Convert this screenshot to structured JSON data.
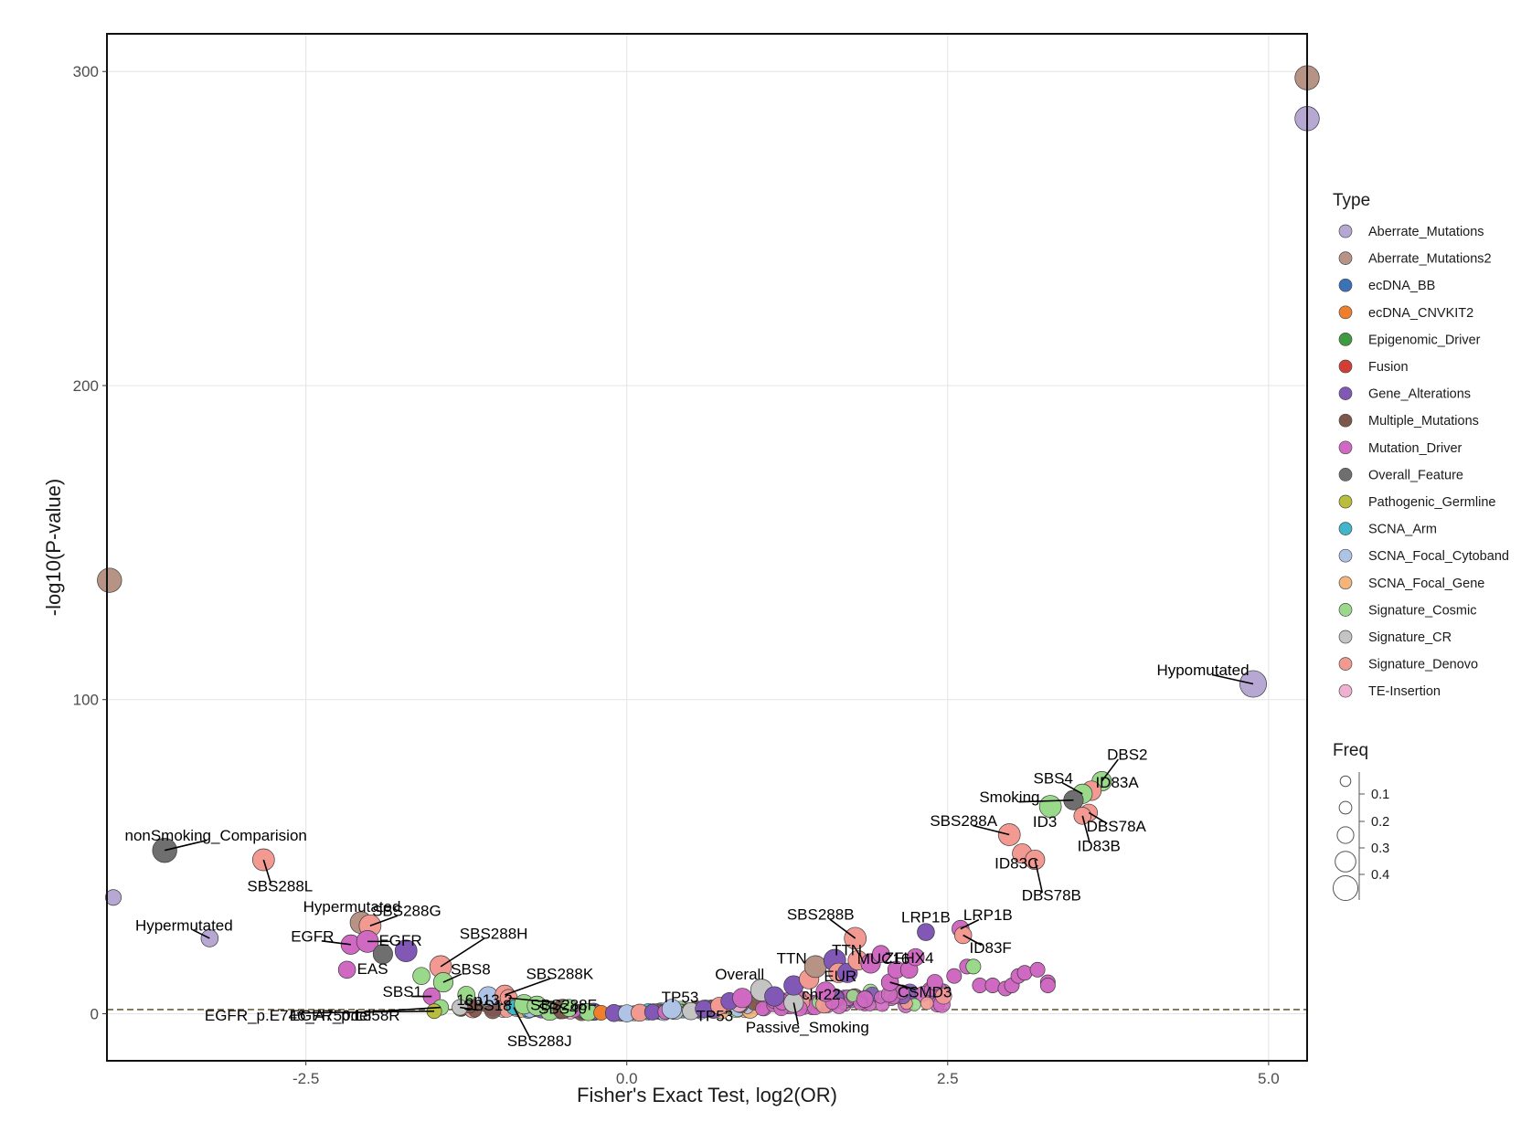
{
  "chart_data": {
    "type": "scatter",
    "xlabel": "Fisher's Exact Test, log2(OR)",
    "ylabel": "-log10(P-value)",
    "xlim": [
      -4.05,
      5.3
    ],
    "ylim": [
      -15,
      312
    ],
    "xticks": [
      -2.5,
      0.0,
      2.5,
      5.0
    ],
    "xtick_labels": [
      "-2.5",
      "0.0",
      "2.5",
      "5.0"
    ],
    "yticks": [
      0,
      100,
      200,
      300
    ],
    "ytick_labels": [
      "0",
      "100",
      "200",
      "300"
    ],
    "grid": true,
    "threshold_line": {
      "y": 1.3,
      "style": "dashed",
      "color": "#6b5d3f"
    },
    "legend_position": "right",
    "type_legend": {
      "title": "Type",
      "entries": [
        {
          "name": "Aberrate_Mutations",
          "color": "#b7a7d3"
        },
        {
          "name": "Aberrate_Mutations2",
          "color": "#b69384"
        },
        {
          "name": "ecDNA_BB",
          "color": "#3a73b5"
        },
        {
          "name": "ecDNA_CNVKIT2",
          "color": "#ef7f2d"
        },
        {
          "name": "Epigenomic_Driver",
          "color": "#3f9b3f"
        },
        {
          "name": "Fusion",
          "color": "#d33d34"
        },
        {
          "name": "Gene_Alterations",
          "color": "#8158b5"
        },
        {
          "name": "Multiple_Mutations",
          "color": "#7d574b"
        },
        {
          "name": "Mutation_Driver",
          "color": "#cf69c1"
        },
        {
          "name": "Overall_Feature",
          "color": "#6f6f6f"
        },
        {
          "name": "Pathogenic_Germline",
          "color": "#b8bd3b"
        },
        {
          "name": "SCNA_Arm",
          "color": "#3fb6c9"
        },
        {
          "name": "SCNA_Focal_Cytoband",
          "color": "#aec3e6"
        },
        {
          "name": "SCNA_Focal_Gene",
          "color": "#f4b57a"
        },
        {
          "name": "Signature_Cosmic",
          "color": "#9ad98a"
        },
        {
          "name": "Signature_CR",
          "color": "#c4c4c4"
        },
        {
          "name": "Signature_Denovo",
          "color": "#f29a92"
        },
        {
          "name": "TE-Insertion",
          "color": "#f1b0d2"
        }
      ]
    },
    "freq_legend": {
      "title": "Freq",
      "entries": [
        {
          "label": "0.1",
          "value": 0.1
        },
        {
          "label": "0.2",
          "value": 0.2
        },
        {
          "label": "0.3",
          "value": 0.3
        },
        {
          "label": "0.4",
          "value": 0.4
        }
      ]
    },
    "points": [
      {
        "x": 5.3,
        "y": 298,
        "type": "Aberrate_Mutations2",
        "freq": 0.3
      },
      {
        "x": 5.3,
        "y": 285,
        "type": "Aberrate_Mutations",
        "freq": 0.3
      },
      {
        "x": -4.03,
        "y": 138,
        "type": "Aberrate_Mutations2",
        "freq": 0.3
      },
      {
        "x": 4.88,
        "y": 105,
        "type": "Aberrate_Mutations",
        "freq": 0.35,
        "label": "Hypomutated"
      },
      {
        "x": 3.7,
        "y": 74,
        "type": "Signature_Cosmic",
        "freq": 0.2,
        "label": "DBS2"
      },
      {
        "x": 3.62,
        "y": 71,
        "type": "Signature_Denovo",
        "freq": 0.2,
        "label": "ID83A"
      },
      {
        "x": 3.55,
        "y": 70,
        "type": "Signature_Cosmic",
        "freq": 0.2,
        "label": "SBS4"
      },
      {
        "x": 3.48,
        "y": 68,
        "type": "Overall_Feature",
        "freq": 0.2,
        "label": "Smoking"
      },
      {
        "x": 3.3,
        "y": 66,
        "type": "Signature_Cosmic",
        "freq": 0.25,
        "label": "ID3"
      },
      {
        "x": 3.6,
        "y": 64,
        "type": "Signature_Denovo",
        "freq": 0.15,
        "label": "DBS78A"
      },
      {
        "x": 3.55,
        "y": 63,
        "type": "Signature_Denovo",
        "freq": 0.15,
        "label": "ID83B"
      },
      {
        "x": 2.98,
        "y": 57,
        "type": "Signature_Denovo",
        "freq": 0.25,
        "label": "SBS288A"
      },
      {
        "x": 3.08,
        "y": 51,
        "type": "Signature_Denovo",
        "freq": 0.2,
        "label": "ID83C"
      },
      {
        "x": 3.18,
        "y": 49,
        "type": "Signature_Denovo",
        "freq": 0.2,
        "label": "DBS78B"
      },
      {
        "x": -3.6,
        "y": 52,
        "type": "Overall_Feature",
        "freq": 0.3,
        "label": "nonSmoking_Comparision"
      },
      {
        "x": -2.83,
        "y": 49,
        "type": "Signature_Denovo",
        "freq": 0.25,
        "label": "SBS288L"
      },
      {
        "x": -4.0,
        "y": 37,
        "type": "Aberrate_Mutations",
        "freq": 0.12
      },
      {
        "x": -3.25,
        "y": 24,
        "type": "Aberrate_Mutations",
        "freq": 0.15,
        "label": "Hypermutated"
      },
      {
        "x": -2.07,
        "y": 29,
        "type": "Aberrate_Mutations2",
        "freq": 0.25,
        "label": "Hypermutated"
      },
      {
        "x": -2.0,
        "y": 28,
        "type": "Signature_Denovo",
        "freq": 0.25,
        "label": "SBS288G"
      },
      {
        "x": -2.15,
        "y": 22,
        "type": "Mutation_Driver",
        "freq": 0.2,
        "label": "EGFR"
      },
      {
        "x": -2.02,
        "y": 23,
        "type": "Mutation_Driver",
        "freq": 0.25,
        "label": "EGFR"
      },
      {
        "x": -1.9,
        "y": 19,
        "type": "Overall_Feature",
        "freq": 0.2
      },
      {
        "x": -1.72,
        "y": 20,
        "type": "Gene_Alterations",
        "freq": 0.25
      },
      {
        "x": -2.18,
        "y": 14,
        "type": "Mutation_Driver",
        "freq": 0.15,
        "label": "EAS"
      },
      {
        "x": -1.45,
        "y": 15,
        "type": "Signature_Denovo",
        "freq": 0.25,
        "label": "SBS288H"
      },
      {
        "x": -1.43,
        "y": 10,
        "type": "Signature_Cosmic",
        "freq": 0.2,
        "label": "SBS8"
      },
      {
        "x": -1.6,
        "y": 12,
        "type": "Signature_Cosmic",
        "freq": 0.15
      },
      {
        "x": -1.25,
        "y": 6,
        "type": "Signature_Cosmic",
        "freq": 0.15
      },
      {
        "x": -1.08,
        "y": 5.5,
        "type": "SCNA_Focal_Cytoband",
        "freq": 0.2,
        "label": "16p13.2"
      },
      {
        "x": -0.95,
        "y": 6,
        "type": "Signature_Denovo",
        "freq": 0.2,
        "label": "SBS288K"
      },
      {
        "x": -0.92,
        "y": 5,
        "type": "Signature_Denovo",
        "freq": 0.15,
        "label": "SBS288F"
      },
      {
        "x": -1.52,
        "y": 5.5,
        "type": "Mutation_Driver",
        "freq": 0.15,
        "label": "SBS1"
      },
      {
        "x": -1.45,
        "y": 2,
        "type": "Signature_Cosmic",
        "freq": 0.12,
        "label": "EGFR_p.L858R"
      },
      {
        "x": -1.3,
        "y": 2,
        "type": "Signature_CR",
        "freq": 0.12,
        "label": "SBS18"
      },
      {
        "x": -0.88,
        "y": 2,
        "type": "SCNA_Arm",
        "freq": 0.1,
        "label": "SBS288J"
      },
      {
        "x": -0.6,
        "y": 1,
        "type": "Signature_Cosmic",
        "freq": 0.2,
        "label": "SBS40"
      },
      {
        "x": -1.5,
        "y": 0.8,
        "type": "Pathogenic_Germline",
        "freq": 0.1,
        "label": "EGFR_p.E746_A750del"
      },
      {
        "x": -0.8,
        "y": 3,
        "type": "Signature_Cosmic",
        "freq": 0.2
      },
      {
        "x": -0.7,
        "y": 2.5,
        "type": "Signature_Cosmic",
        "freq": 0.2
      },
      {
        "x": -0.5,
        "y": 1.5,
        "type": "Multiple_Mutations",
        "freq": 0.2
      },
      {
        "x": -0.45,
        "y": 1.8,
        "type": "Signature_Cosmic",
        "freq": 0.15
      },
      {
        "x": -0.3,
        "y": 0.5,
        "type": "Signature_Cosmic",
        "freq": 0.15
      },
      {
        "x": -0.2,
        "y": 0.3,
        "type": "ecDNA_CNVKIT2",
        "freq": 0.1
      },
      {
        "x": -0.1,
        "y": 0.2,
        "type": "Gene_Alterations",
        "freq": 0.15
      },
      {
        "x": 0.0,
        "y": 0.1,
        "type": "SCNA_Focal_Cytoband",
        "freq": 0.15
      },
      {
        "x": 0.1,
        "y": 0.3,
        "type": "Signature_Denovo",
        "freq": 0.15
      },
      {
        "x": 0.2,
        "y": 0.5,
        "type": "Gene_Alterations",
        "freq": 0.12
      },
      {
        "x": 0.3,
        "y": 0.6,
        "type": "Mutation_Driver",
        "freq": 0.1
      },
      {
        "x": 0.35,
        "y": 1.5,
        "type": "SCNA_Focal_Cytoband",
        "freq": 0.2
      },
      {
        "x": 0.5,
        "y": 0.8,
        "type": "Signature_CR",
        "freq": 0.15
      },
      {
        "x": 0.6,
        "y": 1.5,
        "type": "Gene_Alterations",
        "freq": 0.15,
        "label": "TP53"
      },
      {
        "x": 0.72,
        "y": 2.5,
        "type": "Signature_Denovo",
        "freq": 0.15,
        "label": "TP53"
      },
      {
        "x": 0.8,
        "y": 4,
        "type": "Gene_Alterations",
        "freq": 0.15
      },
      {
        "x": 0.9,
        "y": 5,
        "type": "Mutation_Driver",
        "freq": 0.2
      },
      {
        "x": 1.05,
        "y": 7.5,
        "type": "Signature_CR",
        "freq": 0.25,
        "label": "Overall"
      },
      {
        "x": 1.15,
        "y": 5.5,
        "type": "Gene_Alterations",
        "freq": 0.2
      },
      {
        "x": 1.3,
        "y": 3.5,
        "type": "Signature_CR",
        "freq": 0.2,
        "label": "Passive_Smoking"
      },
      {
        "x": 1.3,
        "y": 9,
        "type": "Gene_Alterations",
        "freq": 0.2
      },
      {
        "x": 1.42,
        "y": 11,
        "type": "Signature_Denovo",
        "freq": 0.2
      },
      {
        "x": 1.47,
        "y": 15,
        "type": "Aberrate_Mutations2",
        "freq": 0.25,
        "label": "TTN"
      },
      {
        "x": 1.55,
        "y": 7,
        "type": "Mutation_Driver",
        "freq": 0.2,
        "label": "chr22"
      },
      {
        "x": 1.62,
        "y": 17,
        "type": "Gene_Alterations",
        "freq": 0.25
      },
      {
        "x": 1.65,
        "y": 13,
        "type": "Signature_Denovo",
        "freq": 0.2
      },
      {
        "x": 1.72,
        "y": 13,
        "type": "Gene_Alterations",
        "freq": 0.2,
        "label": "EUR"
      },
      {
        "x": 1.78,
        "y": 24,
        "type": "Signature_Denovo",
        "freq": 0.25,
        "label": "SBS288B"
      },
      {
        "x": 1.8,
        "y": 17,
        "type": "Signature_Denovo",
        "freq": 0.2,
        "label": "TTN"
      },
      {
        "x": 1.9,
        "y": 16,
        "type": "Mutation_Driver",
        "freq": 0.2,
        "label": "MUC16"
      },
      {
        "x": 1.98,
        "y": 19,
        "type": "Mutation_Driver",
        "freq": 0.15
      },
      {
        "x": 2.05,
        "y": 10,
        "type": "Mutation_Driver",
        "freq": 0.15,
        "label": "CSMD3"
      },
      {
        "x": 2.1,
        "y": 14,
        "type": "Mutation_Driver",
        "freq": 0.15
      },
      {
        "x": 2.2,
        "y": 14,
        "type": "Mutation_Driver",
        "freq": 0.15,
        "label": "ZFHX4"
      },
      {
        "x": 2.25,
        "y": 18,
        "type": "Mutation_Driver",
        "freq": 0.15
      },
      {
        "x": 2.33,
        "y": 26,
        "type": "Gene_Alterations",
        "freq": 0.15,
        "label": "LRP1B"
      },
      {
        "x": 2.6,
        "y": 27,
        "type": "Mutation_Driver",
        "freq": 0.15,
        "label": "LRP1B"
      },
      {
        "x": 2.62,
        "y": 25,
        "type": "Signature_Denovo",
        "freq": 0.15,
        "label": "ID83F"
      },
      {
        "x": 2.4,
        "y": 10,
        "type": "Mutation_Driver",
        "freq": 0.12
      },
      {
        "x": 2.55,
        "y": 12,
        "type": "Mutation_Driver",
        "freq": 0.1
      },
      {
        "x": 2.65,
        "y": 15,
        "type": "Mutation_Driver",
        "freq": 0.1
      },
      {
        "x": 2.7,
        "y": 15,
        "type": "Signature_Cosmic",
        "freq": 0.1
      },
      {
        "x": 2.75,
        "y": 9,
        "type": "Mutation_Driver",
        "freq": 0.1
      },
      {
        "x": 2.85,
        "y": 9,
        "type": "Mutation_Driver",
        "freq": 0.1
      },
      {
        "x": 2.95,
        "y": 8,
        "type": "Mutation_Driver",
        "freq": 0.1
      },
      {
        "x": 3.0,
        "y": 9,
        "type": "Mutation_Driver",
        "freq": 0.1
      },
      {
        "x": 3.05,
        "y": 12,
        "type": "Mutation_Driver",
        "freq": 0.1
      },
      {
        "x": 3.1,
        "y": 13,
        "type": "Mutation_Driver",
        "freq": 0.1
      },
      {
        "x": 3.2,
        "y": 14,
        "type": "Mutation_Driver",
        "freq": 0.1
      },
      {
        "x": 3.28,
        "y": 10,
        "type": "Mutation_Driver",
        "freq": 0.1
      },
      {
        "x": 3.28,
        "y": 9,
        "type": "Mutation_Driver",
        "freq": 0.1
      }
    ]
  }
}
